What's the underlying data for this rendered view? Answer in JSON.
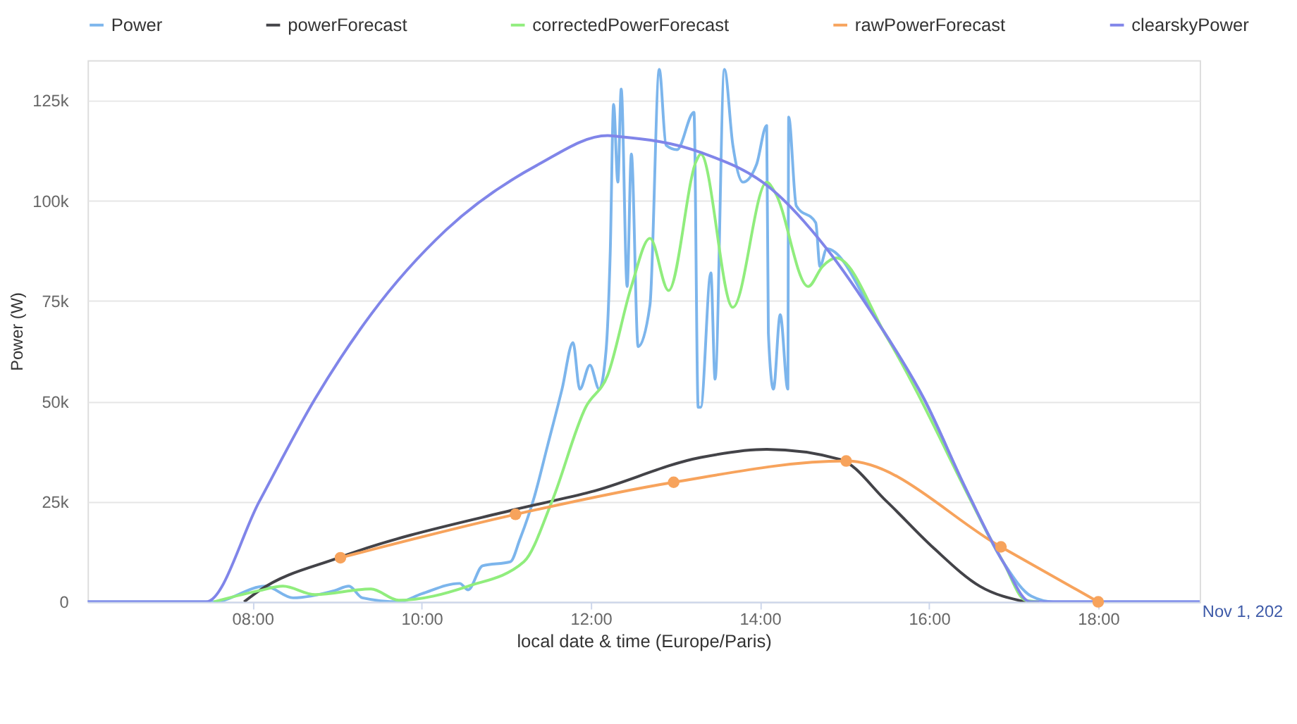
{
  "chart_data": {
    "type": "line",
    "xlabel": "local date & time (Europe/Paris)",
    "ylabel": "Power (W)",
    "xlim": [
      6.05,
      19.2
    ],
    "ylim": [
      0,
      135000
    ],
    "xticks": [
      {
        "value": 8,
        "label": "08:00"
      },
      {
        "value": 10,
        "label": "10:00"
      },
      {
        "value": 12,
        "label": "12:00"
      },
      {
        "value": 14,
        "label": "14:00"
      },
      {
        "value": 16,
        "label": "16:00"
      },
      {
        "value": 18,
        "label": "18:00"
      }
    ],
    "yticks": [
      0,
      {
        "value": 25000,
        "label": "25k"
      },
      {
        "value": 50000,
        "label": "50k"
      },
      {
        "value": 75000,
        "label": "75k"
      },
      {
        "value": 100000,
        "label": "100k"
      },
      {
        "value": 125000,
        "label": "125k"
      }
    ],
    "grid": "y",
    "legend": "top",
    "marker": "none",
    "line_style": "solid",
    "annotations": [
      "Nov 1, 202"
    ],
    "series": [
      {
        "name": "Power",
        "color": "#7cb5ec",
        "x": [
          6.05,
          7.54,
          8.15,
          8.48,
          8.97,
          9.14,
          9.3,
          9.73,
          10.0,
          10.45,
          10.55,
          10.72,
          11.05,
          11.16,
          11.33,
          11.49,
          11.66,
          11.79,
          11.87,
          11.99,
          12.1,
          12.18,
          12.23,
          12.27,
          12.32,
          12.36,
          12.43,
          12.48,
          12.56,
          12.7,
          12.81,
          12.89,
          13.02,
          13.22,
          13.27,
          13.3,
          13.42,
          13.47,
          13.58,
          13.68,
          13.8,
          13.96,
          14.08,
          14.1,
          14.16,
          14.24,
          14.33,
          14.34,
          14.43,
          14.66,
          14.71,
          14.79,
          15.4,
          15.94,
          16.43,
          16.88,
          17.21,
          17.47,
          19.2
        ],
        "values": [
          0,
          0,
          3900,
          1000,
          2800,
          3900,
          1000,
          0,
          2000,
          4600,
          3000,
          9000,
          10000,
          15500,
          26000,
          39000,
          53000,
          64600,
          53000,
          59000,
          53000,
          62500,
          87000,
          124000,
          104600,
          127800,
          78600,
          111600,
          63600,
          74000,
          132700,
          113800,
          112700,
          122000,
          48500,
          48500,
          82000,
          55500,
          132700,
          113800,
          104600,
          109000,
          118700,
          67000,
          53000,
          71600,
          53000,
          120800,
          98700,
          94500,
          83600,
          88000,
          69500,
          50600,
          28400,
          9800,
          1400,
          0,
          0
        ]
      },
      {
        "name": "powerForecast",
        "color": "#434348",
        "x": [
          7.9,
          8.08,
          9.02,
          11.1,
          12.0,
          13.3,
          14.08,
          14.95,
          15.5,
          16.06,
          16.6,
          17.14
        ],
        "values": [
          0,
          2800,
          11000,
          23000,
          27400,
          36000,
          38000,
          35500,
          25000,
          13300,
          3900,
          0
        ]
      },
      {
        "name": "correctedPowerForecast",
        "color": "#90ed7d",
        "x": [
          7.54,
          8.08,
          8.36,
          8.74,
          9.4,
          9.73,
          10.55,
          11.21,
          11.54,
          11.94,
          12.2,
          12.48,
          12.7,
          12.92,
          13.25,
          13.3,
          13.68,
          14.08,
          14.18,
          14.57,
          14.74,
          14.9,
          15.5,
          16.88,
          17.14,
          17.3
        ],
        "values": [
          0,
          2800,
          3900,
          1800,
          3200,
          400,
          3900,
          10000,
          25000,
          48500,
          56500,
          78600,
          90600,
          77600,
          110000,
          111600,
          73400,
          104600,
          102000,
          78600,
          83600,
          85700,
          66000,
          9800,
          400,
          0
        ]
      },
      {
        "name": "rawPowerForecast",
        "color": "#f7a35c",
        "marker": "circle",
        "x": [
          9.04,
          11.11,
          12.98,
          15.02,
          16.85,
          18.0
        ],
        "values": [
          11000,
          21800,
          29800,
          35100,
          13700,
          0
        ]
      },
      {
        "name": "clearskyPower",
        "color": "#8085e9",
        "x": [
          6.05,
          7.45,
          8.08,
          8.74,
          9.4,
          10.29,
          11.38,
          12.2,
          12.32,
          13.3,
          14.13,
          14.79,
          15.4,
          15.94,
          16.43,
          16.88,
          17.2,
          19.2
        ],
        "values": [
          0,
          0,
          25000,
          50600,
          71600,
          92700,
          109000,
          116200,
          116000,
          112000,
          103000,
          88000,
          69500,
          50600,
          28400,
          9800,
          0,
          0
        ]
      }
    ]
  }
}
